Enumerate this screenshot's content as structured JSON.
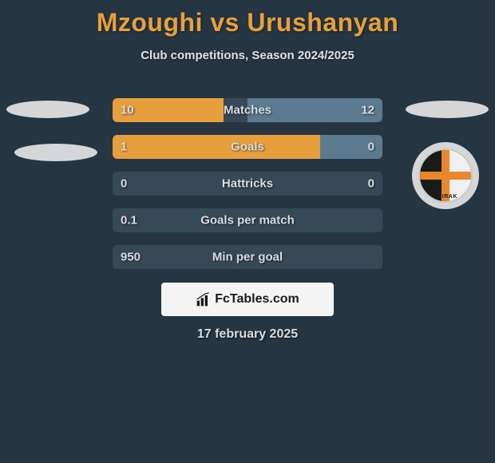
{
  "title": "Mzoughi vs Urushanyan",
  "subtitle": "Club competitions, Season 2024/2025",
  "date": "17 february 2025",
  "fctables_label": "FcTables.com",
  "shirak_label": "SHIRAK",
  "colors": {
    "background": "#253541",
    "title": "#e79f3e",
    "text": "#d8dde1",
    "bar_bg": "#364956",
    "fill_orange": "#e79f3e",
    "fill_blue": "#5b7a90",
    "ellipse": "#d5d6d8"
  },
  "bars": [
    {
      "label": "Matches",
      "left_val": "10",
      "right_val": "12",
      "left_pct": 41,
      "right_pct": 50,
      "left_color": "#e79f3e",
      "right_color": "#5b7a90"
    },
    {
      "label": "Goals",
      "left_val": "1",
      "right_val": "0",
      "left_pct": 77,
      "right_pct": 23,
      "left_color": "#e79f3e",
      "right_color": "#5b7a90"
    },
    {
      "label": "Hattricks",
      "left_val": "0",
      "right_val": "0",
      "left_pct": 0,
      "right_pct": 0,
      "left_color": "#e79f3e",
      "right_color": "#5b7a90"
    },
    {
      "label": "Goals per match",
      "left_val": "0.1",
      "right_val": "",
      "left_pct": 0,
      "right_pct": 0,
      "left_color": "#e79f3e",
      "right_color": "#5b7a90"
    },
    {
      "label": "Min per goal",
      "left_val": "950",
      "right_val": "",
      "left_pct": 0,
      "right_pct": 0,
      "left_color": "#e79f3e",
      "right_color": "#5b7a90"
    }
  ]
}
